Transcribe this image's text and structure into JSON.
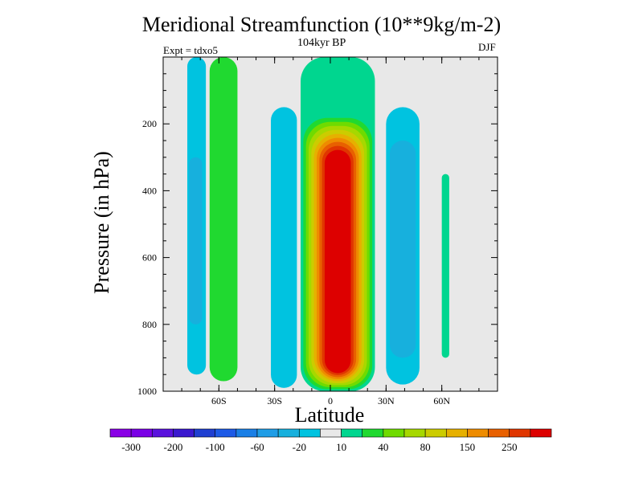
{
  "title": "Meridional Streamfunction (10**9kg/m-2)",
  "subtitle": "104kyr BP",
  "expt_label": "Expt = tdxo5",
  "season": "DJF",
  "chart_data": {
    "type": "heatmap",
    "title": "Meridional Streamfunction (10**9kg/m-2)",
    "xlabel": "Latitude",
    "ylabel": "Pressure (in hPa)",
    "xlim": [
      -90,
      90
    ],
    "ylim": [
      1000,
      0
    ],
    "x_ticks": [
      {
        "value": -60,
        "label": "60S"
      },
      {
        "value": -30,
        "label": "30S"
      },
      {
        "value": 0,
        "label": "0"
      },
      {
        "value": 30,
        "label": "30N"
      },
      {
        "value": 60,
        "label": "60N"
      }
    ],
    "y_ticks": [
      {
        "value": 200,
        "label": "200"
      },
      {
        "value": 400,
        "label": "400"
      },
      {
        "value": 600,
        "label": "600"
      },
      {
        "value": 800,
        "label": "800"
      },
      {
        "value": 1000,
        "label": "1000"
      }
    ],
    "colorbar": {
      "colors": [
        "#8a00e6",
        "#7a00e6",
        "#5a12dd",
        "#3a18cf",
        "#1f3fd1",
        "#1d5ae6",
        "#1a7fe6",
        "#1f9de6",
        "#17b0dd",
        "#00c3e0",
        "#e8e8e8",
        "#00d68f",
        "#20d930",
        "#6fdb00",
        "#a6d800",
        "#cccc00",
        "#e6b000",
        "#ee8c00",
        "#e86000",
        "#e03600",
        "#dd0000"
      ],
      "labels": [
        {
          "after": 1,
          "text": "-300"
        },
        {
          "after": 3,
          "text": "-200"
        },
        {
          "after": 5,
          "text": "-100"
        },
        {
          "after": 7,
          "text": "-60"
        },
        {
          "after": 9,
          "text": "-20"
        },
        {
          "after": 11,
          "text": "10"
        },
        {
          "after": 13,
          "text": "40"
        },
        {
          "after": 15,
          "text": "80"
        },
        {
          "after": 17,
          "text": "150"
        },
        {
          "after": 19,
          "text": "250"
        }
      ]
    },
    "regions": [
      {
        "name": "southern-polar-cell",
        "lat": [
          -77,
          -67
        ],
        "p": [
          0,
          950
        ],
        "level": 9,
        "core": {
          "lat": [
            -76,
            -69
          ],
          "p": [
            300,
            800
          ],
          "level": 8
        }
      },
      {
        "name": "southern-ferrel-band",
        "lat": [
          -65,
          -50
        ],
        "p": [
          0,
          970
        ],
        "level": 12
      },
      {
        "name": "southern-thermally-direct-cell",
        "lat": [
          -32,
          -18
        ],
        "p": [
          150,
          990
        ],
        "level": 9
      },
      {
        "name": "hadley-cell",
        "lat": [
          -14,
          26
        ],
        "p": [
          0,
          1000
        ],
        "level": 12,
        "max": 200
      },
      {
        "name": "northern-ferrel-cell",
        "lat": [
          30,
          48
        ],
        "p": [
          150,
          980
        ],
        "level": 9,
        "core": {
          "lat": [
            32,
            46
          ],
          "p": [
            250,
            900
          ],
          "level": 8
        }
      },
      {
        "name": "northern-high-lat-positive",
        "lat": [
          60,
          64
        ],
        "p": [
          350,
          900
        ],
        "level": 11
      }
    ],
    "grid": false
  }
}
